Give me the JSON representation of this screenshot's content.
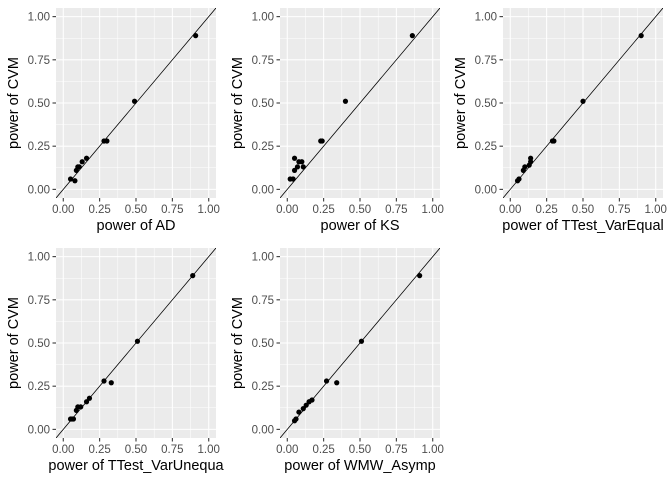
{
  "chart_data": [
    {
      "type": "scatter",
      "xlabel": "power of AD",
      "ylabel": "power of CVM",
      "xlim": [
        0,
        1
      ],
      "ylim": [
        0,
        1
      ],
      "xticks": [
        "0.00",
        "0.25",
        "0.50",
        "0.75",
        "1.00"
      ],
      "yticks": [
        "0.00",
        "0.25",
        "0.50",
        "0.75",
        "1.00"
      ],
      "reference_line": "y = x",
      "grid": true,
      "x": [
        0.05,
        0.08,
        0.09,
        0.1,
        0.11,
        0.13,
        0.16,
        0.28,
        0.3,
        0.49,
        0.91
      ],
      "y": [
        0.06,
        0.05,
        0.11,
        0.13,
        0.13,
        0.16,
        0.18,
        0.28,
        0.28,
        0.51,
        0.89
      ]
    },
    {
      "type": "scatter",
      "xlabel": "power of KS",
      "ylabel": "power of CVM",
      "xlim": [
        0,
        1
      ],
      "ylim": [
        0,
        1
      ],
      "xticks": [
        "0.00",
        "0.25",
        "0.50",
        "0.75",
        "1.00"
      ],
      "yticks": [
        "0.00",
        "0.25",
        "0.50",
        "0.75",
        "1.00"
      ],
      "reference_line": "y = x",
      "grid": true,
      "x": [
        0.02,
        0.04,
        0.05,
        0.05,
        0.07,
        0.08,
        0.1,
        0.11,
        0.23,
        0.24,
        0.4,
        0.86
      ],
      "y": [
        0.06,
        0.06,
        0.11,
        0.18,
        0.13,
        0.16,
        0.16,
        0.13,
        0.28,
        0.28,
        0.51,
        0.89
      ]
    },
    {
      "type": "scatter",
      "xlabel": "power of TTest_VarEqual",
      "ylabel": "power of CVM",
      "xlim": [
        0,
        1
      ],
      "ylim": [
        0,
        1
      ],
      "xticks": [
        "0.00",
        "0.25",
        "0.50",
        "0.75",
        "1.00"
      ],
      "yticks": [
        "0.00",
        "0.25",
        "0.50",
        "0.75",
        "1.00"
      ],
      "reference_line": "y = x",
      "grid": true,
      "x": [
        0.05,
        0.06,
        0.09,
        0.1,
        0.13,
        0.14,
        0.14,
        0.29,
        0.3,
        0.5,
        0.9
      ],
      "y": [
        0.05,
        0.06,
        0.11,
        0.13,
        0.14,
        0.16,
        0.18,
        0.28,
        0.28,
        0.51,
        0.89
      ]
    },
    {
      "type": "scatter",
      "xlabel": "power of TTest_VarUnequa",
      "ylabel": "power of CVM",
      "xlim": [
        0,
        1
      ],
      "ylim": [
        0,
        1
      ],
      "xticks": [
        "0.00",
        "0.25",
        "0.50",
        "0.75",
        "1.00"
      ],
      "yticks": [
        "0.00",
        "0.25",
        "0.50",
        "0.75",
        "1.00"
      ],
      "reference_line": "y = x",
      "grid": true,
      "x": [
        0.05,
        0.06,
        0.07,
        0.09,
        0.1,
        0.12,
        0.16,
        0.18,
        0.28,
        0.33,
        0.51,
        0.89
      ],
      "y": [
        0.06,
        0.06,
        0.06,
        0.11,
        0.13,
        0.13,
        0.16,
        0.18,
        0.28,
        0.27,
        0.51,
        0.89
      ]
    },
    {
      "type": "scatter",
      "xlabel": "power of WMW_Asymp",
      "ylabel": "power of CVM",
      "xlim": [
        0,
        1
      ],
      "ylim": [
        0,
        1
      ],
      "xticks": [
        "0.00",
        "0.25",
        "0.50",
        "0.75",
        "1.00"
      ],
      "yticks": [
        "0.00",
        "0.25",
        "0.50",
        "0.75",
        "1.00"
      ],
      "reference_line": "y = x",
      "grid": true,
      "x": [
        0.05,
        0.06,
        0.08,
        0.11,
        0.13,
        0.15,
        0.17,
        0.27,
        0.34,
        0.51,
        0.91
      ],
      "y": [
        0.05,
        0.06,
        0.1,
        0.12,
        0.14,
        0.16,
        0.17,
        0.28,
        0.27,
        0.51,
        0.89
      ]
    }
  ]
}
